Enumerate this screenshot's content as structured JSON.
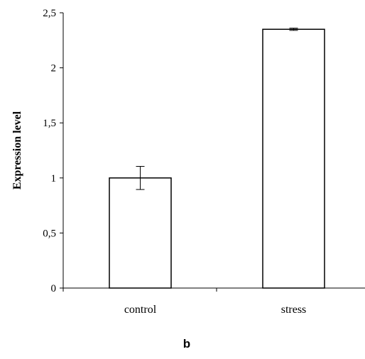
{
  "chart_data": {
    "type": "bar",
    "categories": [
      "control",
      "stress"
    ],
    "values": [
      1.0,
      2.35
    ],
    "errors": [
      0.105,
      0.01
    ],
    "ylabel": "Expression level",
    "ylim": [
      0,
      2.5
    ],
    "yticks": [
      "0",
      "0,5",
      "1",
      "1,5",
      "2",
      "2,5"
    ],
    "ytick_values": [
      0,
      0.5,
      1,
      1.5,
      2,
      2.5
    ],
    "grid": false,
    "bar_fill": "#ffffff",
    "bar_stroke": "#000000"
  },
  "panel_label": "b"
}
